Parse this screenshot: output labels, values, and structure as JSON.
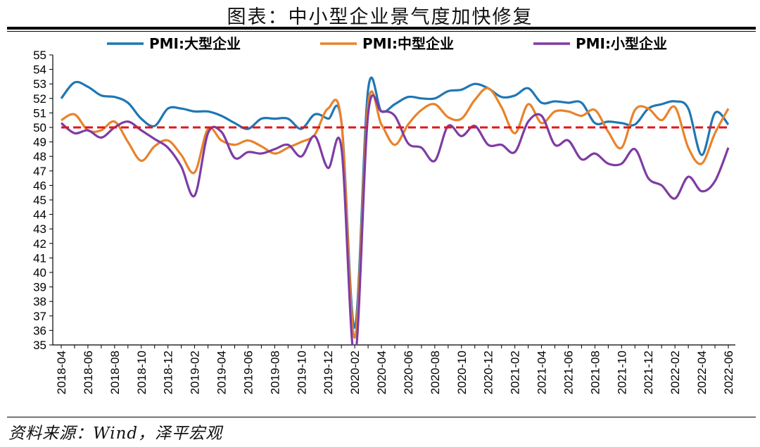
{
  "title": "图表：中小型企业景气度加快修复",
  "source": "资料来源：Wind，泽平宏观",
  "chart_data": {
    "type": "line",
    "ylim": [
      35,
      55
    ],
    "yticks": [
      35,
      36,
      37,
      38,
      39,
      40,
      41,
      42,
      43,
      44,
      45,
      46,
      47,
      48,
      49,
      50,
      51,
      52,
      53,
      54,
      55
    ],
    "x": [
      "2018-04",
      "2018-05",
      "2018-06",
      "2018-07",
      "2018-08",
      "2018-09",
      "2018-10",
      "2018-11",
      "2018-12",
      "2019-01",
      "2019-02",
      "2019-03",
      "2019-04",
      "2019-05",
      "2019-06",
      "2019-07",
      "2019-08",
      "2019-09",
      "2019-10",
      "2019-11",
      "2019-12",
      "2020-01",
      "2020-02",
      "2020-03",
      "2020-04",
      "2020-05",
      "2020-06",
      "2020-07",
      "2020-08",
      "2020-09",
      "2020-10",
      "2020-11",
      "2020-12",
      "2021-01",
      "2021-02",
      "2021-03",
      "2021-04",
      "2021-05",
      "2021-06",
      "2021-07",
      "2021-08",
      "2021-09",
      "2021-10",
      "2021-11",
      "2021-12",
      "2022-01",
      "2022-02",
      "2022-03",
      "2022-04",
      "2022-05",
      "2022-06"
    ],
    "xtick_labels": [
      "2018-04",
      "2018-06",
      "2018-08",
      "2018-10",
      "2018-12",
      "2019-02",
      "2019-04",
      "2019-06",
      "2019-08",
      "2019-10",
      "2019-12",
      "2020-02",
      "2020-04",
      "2020-06",
      "2020-08",
      "2020-10",
      "2020-12",
      "2021-02",
      "2021-04",
      "2021-06",
      "2021-08",
      "2021-10",
      "2021-12",
      "2022-02",
      "2022-04",
      "2022-06"
    ],
    "series": [
      {
        "name": "PMI:大型企业",
        "color": "#1f77b4",
        "values": [
          52.0,
          53.1,
          52.8,
          52.2,
          52.1,
          51.7,
          50.6,
          50.1,
          51.3,
          51.3,
          51.1,
          51.1,
          50.8,
          50.3,
          49.9,
          50.6,
          50.6,
          50.6,
          49.9,
          50.9,
          50.6,
          50.4,
          36.2,
          52.6,
          51.1,
          51.6,
          52.1,
          52.0,
          52.0,
          52.5,
          52.6,
          53.0,
          52.7,
          52.1,
          52.2,
          52.7,
          51.7,
          51.8,
          51.7,
          51.7,
          50.3,
          50.4,
          50.3,
          50.2,
          51.3,
          51.6,
          51.8,
          51.3,
          48.1,
          51.0,
          50.2
        ]
      },
      {
        "name": "PMI:中型企业",
        "color": "#e8832a",
        "values": [
          50.5,
          50.9,
          49.8,
          49.8,
          50.4,
          49.0,
          47.7,
          48.7,
          49.1,
          48.1,
          46.9,
          49.9,
          49.1,
          48.8,
          49.1,
          48.7,
          48.2,
          48.6,
          49.0,
          49.5,
          51.3,
          50.4,
          35.5,
          51.6,
          50.2,
          48.8,
          50.2,
          51.2,
          51.6,
          50.7,
          50.6,
          51.9,
          52.7,
          51.4,
          49.6,
          51.6,
          50.3,
          51.1,
          51.1,
          50.8,
          51.2,
          49.7,
          48.6,
          51.2,
          51.3,
          50.5,
          51.4,
          48.6,
          47.5,
          49.6,
          51.3
        ]
      },
      {
        "name": "PMI:小型企业",
        "color": "#7e3ca3",
        "values": [
          50.3,
          49.6,
          49.8,
          49.3,
          50.0,
          50.4,
          49.8,
          49.2,
          48.6,
          47.3,
          45.3,
          49.6,
          49.7,
          47.9,
          48.3,
          48.2,
          48.5,
          48.8,
          48.0,
          49.4,
          47.2,
          48.6,
          34.1,
          50.9,
          51.1,
          50.8,
          48.9,
          48.6,
          47.7,
          50.1,
          49.4,
          50.1,
          48.8,
          48.8,
          48.3,
          50.4,
          50.8,
          48.8,
          49.1,
          47.8,
          48.2,
          47.5,
          47.5,
          48.5,
          46.5,
          46.0,
          45.1,
          46.6,
          45.6,
          46.3,
          48.6
        ]
      }
    ],
    "reference_line": {
      "value": 50.0,
      "color": "#e0161b",
      "style": "dashed"
    }
  }
}
